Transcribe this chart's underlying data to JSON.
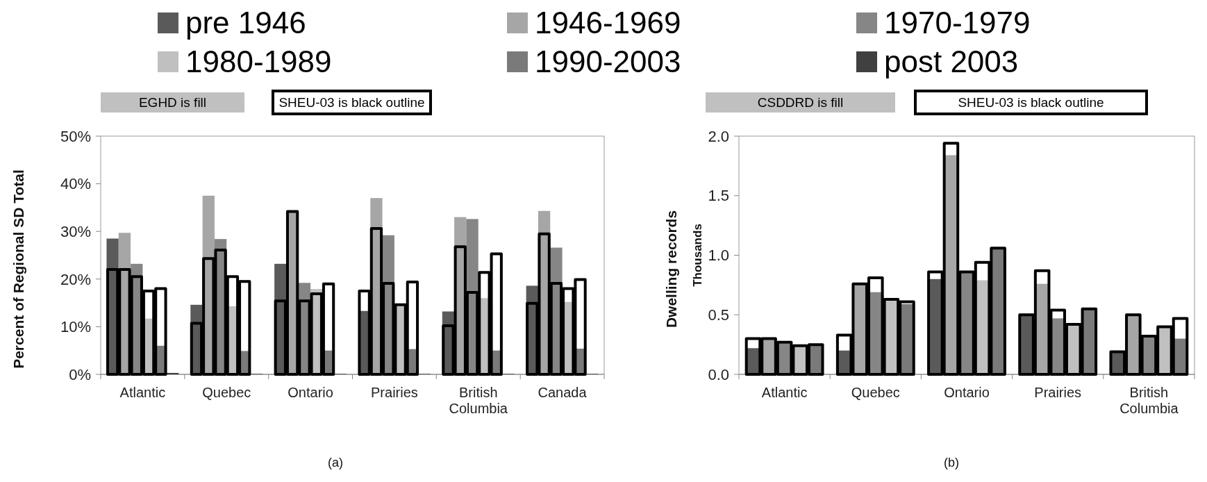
{
  "chart_data": [
    {
      "type": "bar",
      "title": "(a)",
      "ylabel": "Percent of Regional SD Total",
      "legend": "top",
      "annotations": [
        "EGHD is fill",
        "SHEU-03 is black outline"
      ],
      "categories": [
        "Atlantic",
        "Quebec",
        "Ontario",
        "Prairies",
        "British Columbia",
        "Canada"
      ],
      "ylim": [
        0,
        50
      ],
      "yticks": [
        {
          "value": 0,
          "label": "0%"
        },
        {
          "value": 10,
          "label": "10%"
        },
        {
          "value": 20,
          "label": "20%"
        },
        {
          "value": 30,
          "label": "30%"
        },
        {
          "value": 40,
          "label": "40%"
        },
        {
          "value": 50,
          "label": "50%"
        }
      ],
      "series": [
        {
          "name": "pre 1946",
          "color": "#5a5a5a",
          "values": [
            28.5,
            14.6,
            23.2,
            13.3,
            13.2,
            18.6
          ]
        },
        {
          "name": "1946-1969",
          "color": "#a6a6a6",
          "values": [
            29.7,
            37.5,
            34.2,
            37.0,
            33.0,
            34.3
          ]
        },
        {
          "name": "1970-1979",
          "color": "#868686",
          "values": [
            23.2,
            28.4,
            19.2,
            29.2,
            32.6,
            26.6
          ]
        },
        {
          "name": "1980-1989",
          "color": "#c0c0c0",
          "values": [
            11.7,
            14.3,
            17.9,
            14.6,
            16.0,
            15.2
          ]
        },
        {
          "name": "1990-2003",
          "color": "#7a7a7a",
          "values": [
            6.0,
            4.9,
            5.0,
            5.3,
            5.0,
            5.4
          ]
        },
        {
          "name": "post 2003",
          "color": "#404040",
          "values": [
            0.3,
            0.1,
            0.1,
            0.1,
            0.1,
            0.1
          ]
        },
        {
          "line_style": "solid",
          "color": "#000000",
          "values": [
            22.0,
            10.7,
            15.4,
            17.5,
            10.2,
            14.9
          ]
        },
        {
          "line_style": "solid",
          "color": "#000000",
          "values": [
            22.0,
            24.3,
            34.2,
            30.6,
            26.8,
            29.5
          ]
        },
        {
          "line_style": "solid",
          "color": "#000000",
          "values": [
            20.5,
            26.1,
            15.4,
            19.1,
            17.2,
            19.1
          ]
        },
        {
          "line_style": "solid",
          "color": "#000000",
          "values": [
            17.5,
            20.5,
            16.9,
            14.6,
            21.4,
            18.0
          ]
        },
        {
          "line_style": "solid",
          "color": "#000000",
          "values": [
            18.0,
            19.5,
            19.0,
            19.4,
            25.3,
            19.9
          ]
        }
      ]
    },
    {
      "type": "bar",
      "title": "(b)",
      "ylabel": "Dwelling records",
      "annotations": [
        "CSDDRD is fill",
        "SHEU-03 is black outline",
        "Thousands"
      ],
      "categories": [
        "Atlantic",
        "Quebec",
        "Ontario",
        "Prairies",
        "British Columbia"
      ],
      "ylim": [
        0,
        2
      ],
      "yticks": [
        {
          "value": 0,
          "label": "0.0"
        },
        0.5,
        {
          "value": 1,
          "label": "1.0"
        },
        1.5,
        {
          "value": 2,
          "label": "2.0"
        }
      ],
      "series": [
        {
          "color": "#5a5a5a",
          "values": [
            0.22,
            0.2,
            0.8,
            0.5,
            0.19
          ]
        },
        {
          "color": "#a6a6a6",
          "values": [
            0.3,
            0.76,
            1.84,
            0.76,
            0.5
          ]
        },
        {
          "color": "#868686",
          "values": [
            0.26,
            0.69,
            0.86,
            0.47,
            0.32
          ]
        },
        {
          "color": "#c0c0c0",
          "values": [
            0.24,
            0.63,
            0.79,
            0.42,
            0.4
          ]
        },
        {
          "color": "#7a7a7a",
          "values": [
            0.25,
            0.59,
            1.06,
            0.55,
            0.3
          ]
        },
        {
          "line_style": "solid",
          "color": "#000000",
          "values": [
            0.3,
            0.33,
            0.86,
            0.5,
            0.19
          ]
        },
        {
          "line_style": "solid",
          "color": "#000000",
          "values": [
            0.3,
            0.76,
            1.94,
            0.87,
            0.5
          ]
        },
        {
          "line_style": "solid",
          "color": "#000000",
          "values": [
            0.27,
            0.81,
            0.86,
            0.54,
            0.32
          ]
        },
        {
          "line_style": "solid",
          "color": "#000000",
          "values": [
            0.24,
            0.63,
            0.94,
            0.42,
            0.4
          ]
        },
        {
          "line_style": "solid",
          "color": "#000000",
          "values": [
            0.25,
            0.61,
            1.06,
            0.55,
            0.47
          ]
        }
      ]
    }
  ]
}
